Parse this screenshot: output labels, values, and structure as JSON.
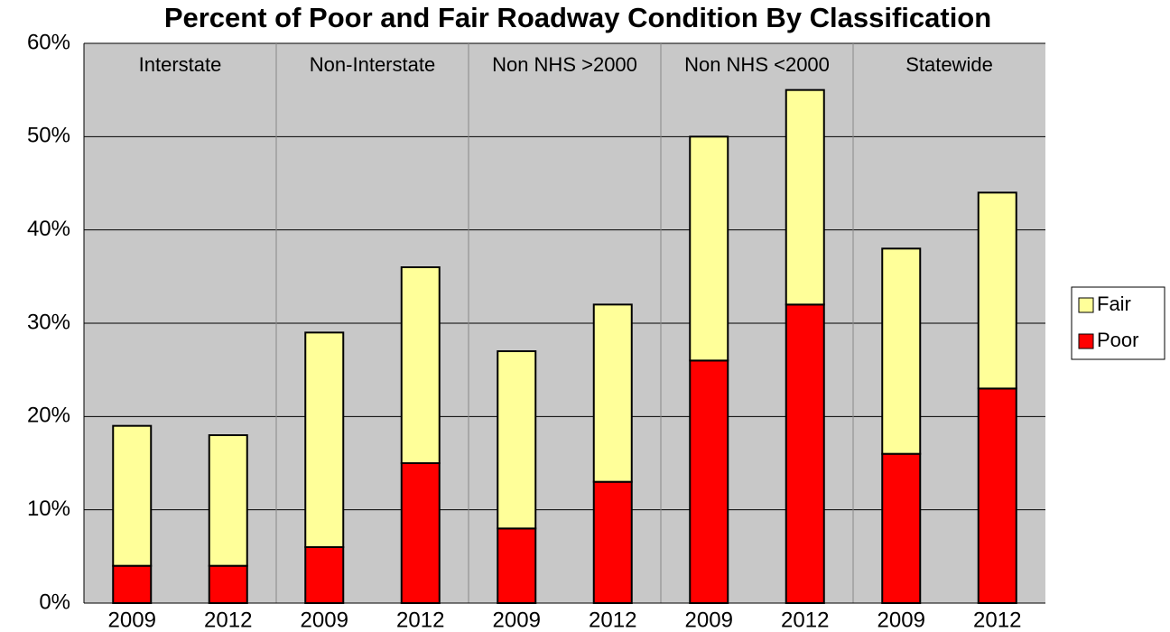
{
  "chart_data": {
    "type": "stacked_bar",
    "title": "Percent of Poor and Fair Roadway Condition By Classification",
    "groups": [
      "Interstate",
      "Non-Interstate",
      "Non NHS >2000",
      "Non NHS <2000",
      "Statewide"
    ],
    "categories": [
      "2009",
      "2012",
      "2009",
      "2012",
      "2009",
      "2012",
      "2009",
      "2012",
      "2009",
      "2012"
    ],
    "series": [
      {
        "name": "Poor",
        "color": "#ff0000",
        "values": [
          4,
          4,
          6,
          15,
          8,
          13,
          26,
          32,
          16,
          23
        ]
      },
      {
        "name": "Fair",
        "color": "#ffff99",
        "values": [
          15,
          14,
          23,
          21,
          19,
          19,
          24,
          23,
          22,
          21
        ]
      }
    ],
    "ylim": [
      0,
      60
    ],
    "yticks": [
      {
        "value": 0,
        "label": "0%"
      },
      {
        "value": 10,
        "label": "10%"
      },
      {
        "value": 20,
        "label": "20%"
      },
      {
        "value": 30,
        "label": "30%"
      },
      {
        "value": 40,
        "label": "40%"
      },
      {
        "value": 50,
        "label": "50%"
      },
      {
        "value": 60,
        "label": "60%"
      }
    ],
    "grid": true,
    "legend": "right"
  }
}
